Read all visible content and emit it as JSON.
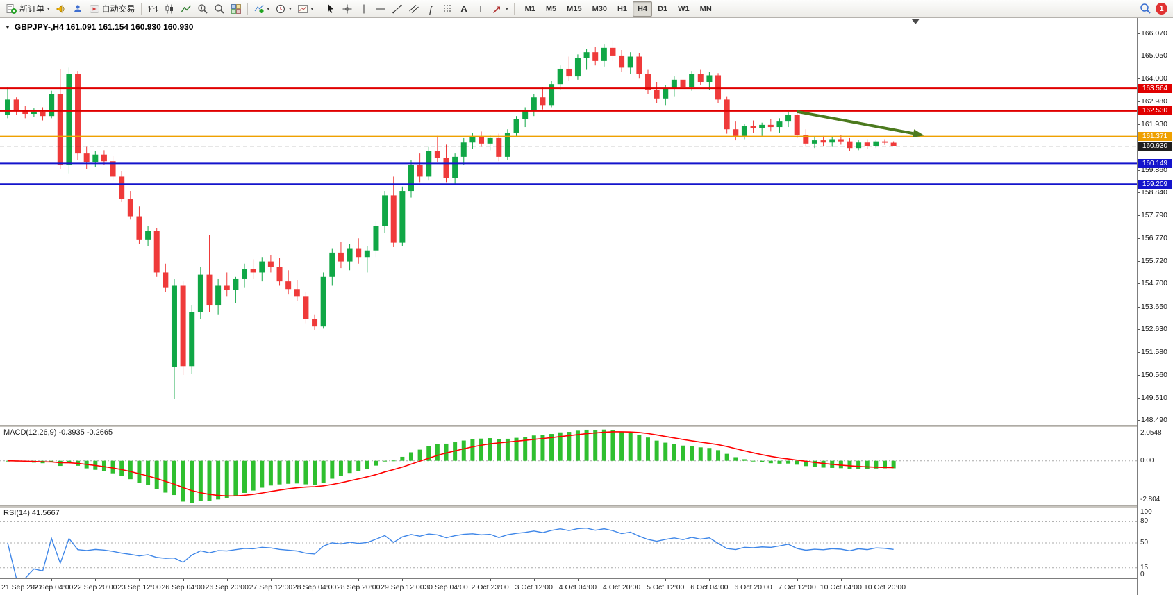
{
  "toolbar": {
    "new_order_label": "新订单",
    "autotrade_label": "自动交易",
    "notification_count": "1",
    "glyphs": {
      "caret": "▾",
      "title_caret": "▼",
      "fibonacci": "ƒ",
      "text_tool": "A",
      "label_tool": "T"
    },
    "timeframes": [
      {
        "label": "M1"
      },
      {
        "label": "M5"
      },
      {
        "label": "M15"
      },
      {
        "label": "M30"
      },
      {
        "label": "H1"
      },
      {
        "label": "H4",
        "active": true
      },
      {
        "label": "D1"
      },
      {
        "label": "W1"
      },
      {
        "label": "MN"
      }
    ]
  },
  "chart": {
    "title": "GBPJPY-,H4  161.091 161.154 160.930 160.930",
    "symbol": "GBPJPY-",
    "period": "H4"
  },
  "colors": {
    "candle_up": "#10A746",
    "candle_down": "#EF3A3A",
    "macd_histogram": "#2FBF2F",
    "macd_signal": "#FF0000",
    "rsi_line": "#3E86E8",
    "bid_line": "#3A3A3A",
    "arrow_green": "#4C7A1E",
    "grid_dotted": "#A8A8A8"
  },
  "chart_data": {
    "type": "candlestick",
    "symbol": "GBPJPY-",
    "timeframe": "H4",
    "y_range": [
      148.28,
      166.75
    ],
    "y_ticks": [
      "166.070",
      "165.050",
      "164.000",
      "162.980",
      "161.930",
      "159.860",
      "158.840",
      "157.790",
      "156.770",
      "155.720",
      "154.700",
      "153.650",
      "152.630",
      "151.580",
      "150.560",
      "149.510",
      "148.490"
    ],
    "x_label_step": 5,
    "x_labels": [
      "21 Sep 2022",
      "22 Sep 04:00",
      "22 Sep 20:00",
      "23 Sep 12:00",
      "26 Sep 04:00",
      "26 Sep 20:00",
      "27 Sep 12:00",
      "28 Sep 04:00",
      "28 Sep 20:00",
      "29 Sep 12:00",
      "30 Sep 04:00",
      "2 Oct 23:00",
      "3 Oct 12:00",
      "4 Oct 04:00",
      "4 Oct 20:00",
      "5 Oct 12:00",
      "6 Oct 04:00",
      "6 Oct 20:00",
      "7 Oct 12:00",
      "10 Oct 04:00",
      "10 Oct 20:00"
    ],
    "levels": [
      {
        "price": 163.564,
        "label": "163.564",
        "color": "#E00000"
      },
      {
        "price": 162.53,
        "label": "162.530",
        "color": "#E00000"
      },
      {
        "price": 161.371,
        "label": "161.371",
        "color": "#EFA000"
      },
      {
        "price": 160.93,
        "label": "160.930",
        "color": "#3A3A3A",
        "style": "bid"
      },
      {
        "price": 160.149,
        "label": "160.149",
        "color": "#1414CC"
      },
      {
        "price": 159.209,
        "label": "159.209",
        "color": "#1414CC"
      }
    ],
    "arrow": {
      "from_index": 90,
      "from_price": 162.5,
      "to_index": 104.5,
      "to_price": 161.42,
      "color": "#4C7A1E"
    },
    "indicators": [
      {
        "type": "macd",
        "params": [
          12,
          26,
          9
        ],
        "label": "MACD(12,26,9) -0.3935 -0.2665",
        "scale_labels": [
          "2.0548",
          "0.00",
          "-2.804"
        ]
      },
      {
        "type": "rsi",
        "params": [
          14
        ],
        "label": "RSI(14) 41.5667",
        "levels": [
          80,
          50,
          15
        ],
        "level_labels": [
          "100",
          "80",
          "50",
          "15",
          "0"
        ]
      }
    ],
    "ohlc": [
      [
        162.35,
        163.6,
        162.2,
        163.05
      ],
      [
        163.05,
        163.15,
        162.35,
        162.55
      ],
      [
        162.55,
        162.75,
        162.2,
        162.4
      ],
      [
        162.4,
        162.65,
        162.25,
        162.5
      ],
      [
        162.5,
        162.7,
        162.1,
        162.3
      ],
      [
        162.3,
        163.45,
        162.2,
        163.3
      ],
      [
        163.3,
        164.45,
        159.9,
        160.1
      ],
      [
        160.1,
        164.5,
        159.7,
        164.2
      ],
      [
        164.2,
        164.35,
        160.3,
        160.6
      ],
      [
        160.6,
        160.9,
        159.9,
        160.2
      ],
      [
        160.2,
        160.7,
        160.0,
        160.55
      ],
      [
        160.55,
        160.75,
        160.1,
        160.25
      ],
      [
        160.25,
        160.5,
        159.4,
        159.55
      ],
      [
        159.55,
        159.8,
        158.4,
        158.55
      ],
      [
        158.55,
        158.9,
        157.6,
        157.75
      ],
      [
        157.75,
        158.2,
        156.5,
        156.7
      ],
      [
        156.7,
        157.3,
        156.4,
        157.1
      ],
      [
        157.1,
        157.2,
        155.0,
        155.2
      ],
      [
        155.2,
        155.6,
        154.3,
        154.5
      ],
      [
        150.9,
        154.9,
        149.45,
        154.6
      ],
      [
        154.6,
        154.8,
        150.55,
        150.95
      ],
      [
        150.95,
        153.7,
        150.6,
        153.4
      ],
      [
        153.4,
        155.45,
        153.1,
        155.1
      ],
      [
        155.1,
        156.9,
        153.4,
        153.7
      ],
      [
        153.7,
        154.9,
        153.3,
        154.6
      ],
      [
        154.6,
        155.2,
        154.1,
        154.4
      ],
      [
        154.4,
        155.0,
        153.8,
        154.9
      ],
      [
        154.9,
        155.6,
        154.5,
        155.35
      ],
      [
        155.35,
        155.8,
        154.9,
        155.2
      ],
      [
        155.2,
        155.9,
        154.8,
        155.7
      ],
      [
        155.7,
        156.0,
        155.2,
        155.45
      ],
      [
        155.45,
        155.85,
        154.6,
        154.8
      ],
      [
        154.8,
        155.3,
        154.2,
        154.45
      ],
      [
        154.45,
        154.85,
        153.9,
        154.1
      ],
      [
        154.1,
        154.3,
        152.9,
        153.1
      ],
      [
        153.1,
        153.3,
        152.6,
        152.75
      ],
      [
        152.75,
        155.2,
        152.65,
        155.0
      ],
      [
        155.0,
        156.3,
        154.6,
        156.1
      ],
      [
        156.1,
        156.6,
        155.4,
        155.7
      ],
      [
        155.7,
        156.5,
        155.3,
        156.3
      ],
      [
        156.3,
        156.75,
        155.6,
        155.9
      ],
      [
        155.9,
        156.4,
        155.2,
        156.2
      ],
      [
        156.2,
        157.5,
        155.9,
        157.3
      ],
      [
        157.3,
        158.9,
        157.0,
        158.7
      ],
      [
        158.7,
        159.55,
        156.35,
        156.55
      ],
      [
        156.55,
        159.1,
        156.4,
        158.9
      ],
      [
        158.9,
        160.3,
        158.6,
        160.1
      ],
      [
        160.1,
        160.6,
        159.3,
        159.55
      ],
      [
        159.55,
        160.9,
        159.4,
        160.7
      ],
      [
        160.7,
        161.4,
        160.2,
        160.4
      ],
      [
        160.4,
        161.0,
        159.3,
        159.5
      ],
      [
        159.5,
        160.6,
        159.2,
        160.45
      ],
      [
        160.45,
        161.3,
        160.1,
        161.1
      ],
      [
        161.1,
        161.55,
        160.8,
        161.35
      ],
      [
        161.35,
        161.6,
        160.9,
        161.05
      ],
      [
        161.05,
        161.45,
        160.75,
        161.3
      ],
      [
        161.3,
        161.5,
        160.25,
        160.45
      ],
      [
        160.45,
        161.7,
        160.3,
        161.55
      ],
      [
        161.55,
        162.3,
        161.4,
        162.15
      ],
      [
        162.15,
        162.7,
        161.8,
        162.55
      ],
      [
        162.55,
        163.3,
        162.3,
        163.15
      ],
      [
        163.15,
        163.6,
        162.6,
        162.8
      ],
      [
        162.8,
        163.9,
        162.7,
        163.75
      ],
      [
        163.75,
        164.6,
        163.5,
        164.45
      ],
      [
        164.45,
        165.0,
        163.9,
        164.1
      ],
      [
        164.1,
        165.1,
        163.95,
        164.95
      ],
      [
        164.95,
        165.35,
        164.4,
        165.2
      ],
      [
        165.2,
        165.45,
        164.6,
        164.8
      ],
      [
        164.8,
        165.55,
        164.55,
        165.4
      ],
      [
        165.4,
        165.75,
        164.8,
        165.05
      ],
      [
        165.05,
        165.3,
        164.3,
        164.5
      ],
      [
        164.5,
        165.2,
        164.2,
        165.0
      ],
      [
        165.0,
        165.15,
        164.0,
        164.2
      ],
      [
        164.2,
        164.4,
        163.3,
        163.5
      ],
      [
        163.5,
        163.85,
        162.9,
        163.1
      ],
      [
        163.1,
        163.7,
        162.8,
        163.55
      ],
      [
        163.55,
        164.1,
        163.2,
        163.95
      ],
      [
        163.95,
        164.25,
        163.4,
        163.6
      ],
      [
        163.6,
        164.35,
        163.45,
        164.2
      ],
      [
        164.2,
        164.4,
        163.7,
        163.85
      ],
      [
        163.85,
        164.3,
        163.5,
        164.15
      ],
      [
        164.15,
        164.25,
        162.9,
        163.05
      ],
      [
        163.05,
        163.2,
        161.5,
        161.7
      ],
      [
        161.7,
        162.05,
        161.2,
        161.4
      ],
      [
        161.4,
        161.95,
        161.25,
        161.85
      ],
      [
        161.85,
        162.1,
        161.55,
        161.75
      ],
      [
        161.75,
        162.0,
        161.4,
        161.9
      ],
      [
        161.9,
        162.15,
        161.6,
        161.8
      ],
      [
        161.8,
        162.2,
        161.55,
        162.05
      ],
      [
        162.05,
        162.5,
        161.8,
        162.35
      ],
      [
        162.35,
        162.45,
        161.3,
        161.45
      ],
      [
        161.45,
        161.7,
        160.9,
        161.05
      ],
      [
        161.05,
        161.35,
        160.85,
        161.2
      ],
      [
        161.2,
        161.4,
        160.95,
        161.1
      ],
      [
        161.1,
        161.35,
        160.9,
        161.25
      ],
      [
        161.25,
        161.45,
        161.0,
        161.15
      ],
      [
        161.15,
        161.3,
        160.7,
        160.85
      ],
      [
        160.85,
        161.2,
        160.75,
        161.1
      ],
      [
        161.1,
        161.25,
        160.8,
        160.95
      ],
      [
        160.95,
        161.2,
        160.85,
        161.15
      ],
      [
        161.15,
        161.25,
        160.99,
        161.091
      ],
      [
        161.091,
        161.154,
        160.93,
        160.93
      ]
    ]
  }
}
